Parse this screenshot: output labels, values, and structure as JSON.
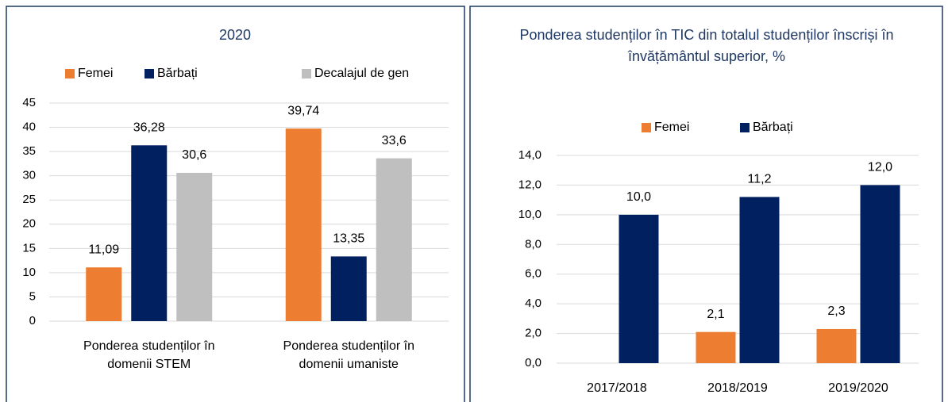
{
  "chart_data": [
    {
      "type": "bar",
      "title": "2020",
      "categories": [
        "Ponderea studenților în domenii STEM",
        "Ponderea studenților în domenii umaniste"
      ],
      "series": [
        {
          "name": "Femei",
          "color": "#ed7d31",
          "values": [
            11.09,
            39.74
          ],
          "value_labels": [
            "11,09",
            "39,74"
          ]
        },
        {
          "name": "Bărbați",
          "color": "#002060",
          "values": [
            36.28,
            13.35
          ],
          "value_labels": [
            "36,28",
            "13,35"
          ]
        },
        {
          "name": "Decalajul de gen",
          "color": "#bfbfbf",
          "values": [
            30.6,
            33.6
          ],
          "value_labels": [
            "30,6",
            "33,6"
          ]
        }
      ],
      "ylim": [
        0,
        45
      ],
      "yticks": [
        0,
        5,
        10,
        15,
        20,
        25,
        30,
        35,
        40,
        45
      ],
      "grid": true,
      "legend": "top"
    },
    {
      "type": "bar",
      "title": "Ponderea studenților în TIC din totalul studenților înscriși în învățământul superior, %",
      "categories": [
        "2017/2018",
        "2018/2019",
        "2019/2020"
      ],
      "series": [
        {
          "name": "Femei",
          "color": "#ed7d31",
          "values": [
            null,
            2.1,
            2.3
          ],
          "value_labels": [
            null,
            "2,1",
            "2,3"
          ]
        },
        {
          "name": "Bărbați",
          "color": "#002060",
          "values": [
            10.0,
            11.2,
            12.0
          ],
          "value_labels": [
            "10,0",
            "11,2",
            "12,0"
          ]
        }
      ],
      "ylim": [
        0,
        14
      ],
      "yticks": [
        {
          "value": 0,
          "label": "0,0"
        },
        {
          "value": 2,
          "label": "2,0"
        },
        {
          "value": 4,
          "label": "4,0"
        },
        {
          "value": 6,
          "label": "6,0"
        },
        {
          "value": 8,
          "label": "8,0"
        },
        {
          "value": 10,
          "label": "10,0"
        },
        {
          "value": 12,
          "label": "12,0"
        },
        {
          "value": 14,
          "label": "14,0"
        }
      ],
      "grid": true,
      "legend": "top"
    }
  ]
}
